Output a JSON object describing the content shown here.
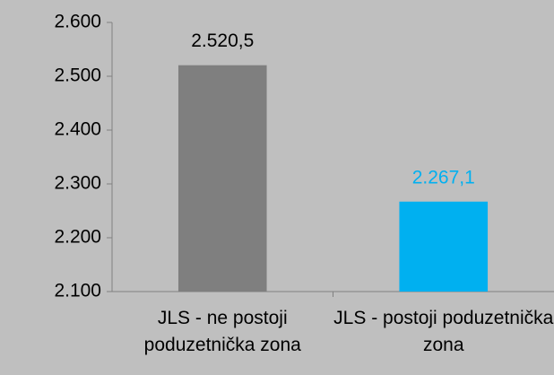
{
  "chart_data": {
    "type": "bar",
    "categories": [
      "JLS - ne postoji poduzetnička zona",
      "JLS - postoji poduzetnička zona"
    ],
    "values": [
      2520.5,
      2267.1
    ],
    "value_labels": [
      "2.520,5",
      "2.267,1"
    ],
    "colors": [
      "#7f7f7f",
      "#00b0f0"
    ],
    "value_label_colors": [
      "#000000",
      "#00b0f0"
    ],
    "ylim": [
      2100,
      2600
    ],
    "yticks": [
      {
        "value": 2100,
        "label": "2.100"
      },
      {
        "value": 2200,
        "label": "2.200"
      },
      {
        "value": 2300,
        "label": "2.300"
      },
      {
        "value": 2400,
        "label": "2.400"
      },
      {
        "value": 2500,
        "label": "2.500"
      },
      {
        "value": 2600,
        "label": "2.600"
      }
    ],
    "grid": false
  }
}
